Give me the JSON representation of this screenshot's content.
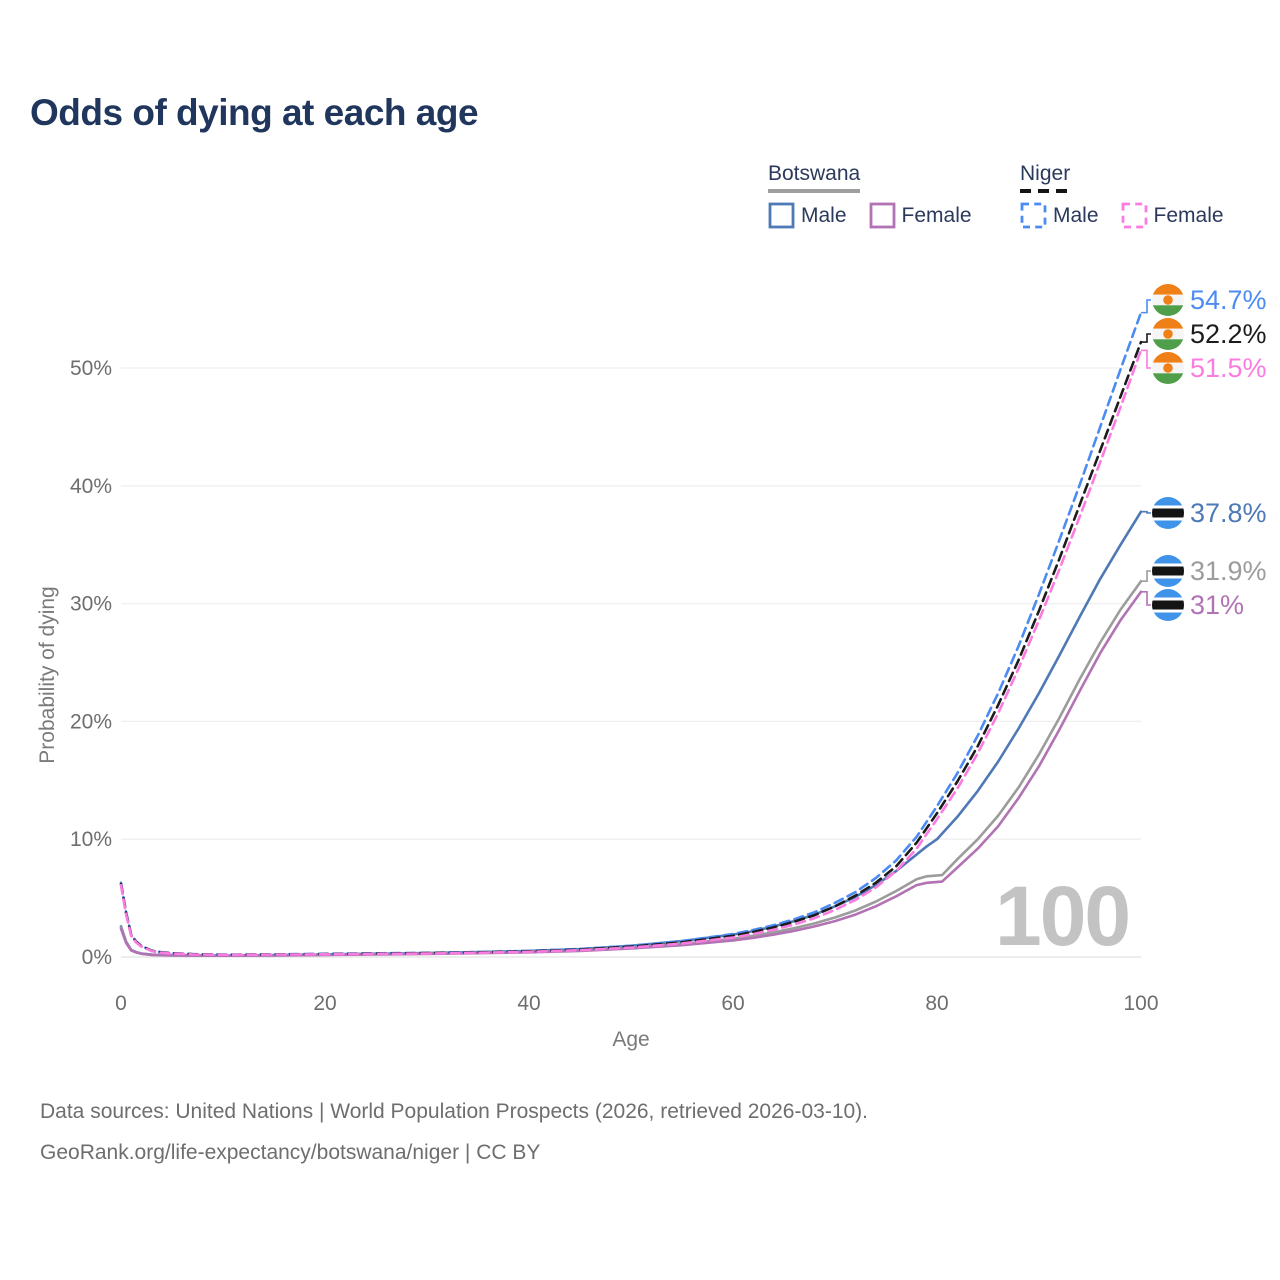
{
  "title": "Odds of dying at each age",
  "watermark_age": "100",
  "legend": {
    "groups": [
      {
        "country": "Botswana",
        "line_style": "solid",
        "underline_color": "#9e9e9e",
        "items": [
          {
            "label": "Male",
            "color": "#4e79b6"
          },
          {
            "label": "Female",
            "color": "#b273b5"
          }
        ]
      },
      {
        "country": "Niger",
        "line_style": "dashed",
        "underline_color": "#141414",
        "items": [
          {
            "label": "Male",
            "color": "#4c8cf2"
          },
          {
            "label": "Female",
            "color": "#fb7be0"
          }
        ]
      }
    ]
  },
  "footer": {
    "line1": "Data sources: United Nations | World Population Prospects (2026, retrieved 2026-03-10).",
    "line2": "GeoRank.org/life-expectancy/botswana/niger | CC BY"
  },
  "flag_colors": {
    "niger": {
      "top": "#ef8018",
      "middle": "#f5f5f5",
      "bottom": "#4f9e4a",
      "roundel": "#ef8018"
    },
    "botswana": {
      "field": "#3f93e8",
      "band_edge": "#ffffff",
      "band": "#141414"
    }
  },
  "chart_data": {
    "type": "line",
    "title": "Odds of dying at each age",
    "xlabel": "Age",
    "ylabel": "Probability of dying",
    "xlim": [
      0,
      100
    ],
    "ylim": [
      0,
      55
    ],
    "x_ticks": [
      0,
      20,
      40,
      60,
      80,
      100
    ],
    "y_ticks": [
      {
        "value": 0,
        "label": "0%"
      },
      {
        "value": 10,
        "label": "10%"
      },
      {
        "value": 20,
        "label": "20%"
      },
      {
        "value": 30,
        "label": "30%"
      },
      {
        "value": 40,
        "label": "40%"
      },
      {
        "value": 50,
        "label": "50%"
      }
    ],
    "grid": "horizontal",
    "legend_position": "top-right",
    "series": [
      {
        "name": "Botswana Male",
        "country": "Botswana",
        "sex": "Male",
        "style": "solid",
        "color": "#4e79b6",
        "flag": "botswana",
        "end_label": "37.8%",
        "end_value": 37.8,
        "points": [
          [
            0,
            2.6
          ],
          [
            0.5,
            1.3
          ],
          [
            1,
            0.6
          ],
          [
            1.5,
            0.42
          ],
          [
            2,
            0.3
          ],
          [
            3,
            0.2
          ],
          [
            4,
            0.17
          ],
          [
            5,
            0.15
          ],
          [
            7,
            0.14
          ],
          [
            10,
            0.13
          ],
          [
            15,
            0.16
          ],
          [
            20,
            0.22
          ],
          [
            25,
            0.28
          ],
          [
            30,
            0.34
          ],
          [
            35,
            0.42
          ],
          [
            40,
            0.52
          ],
          [
            45,
            0.68
          ],
          [
            50,
            0.95
          ],
          [
            55,
            1.35
          ],
          [
            60,
            1.9
          ],
          [
            62,
            2.2
          ],
          [
            64,
            2.6
          ],
          [
            66,
            3.05
          ],
          [
            68,
            3.6
          ],
          [
            70,
            4.3
          ],
          [
            72,
            5.1
          ],
          [
            74,
            6.1
          ],
          [
            76,
            7.3
          ],
          [
            78,
            8.7
          ],
          [
            79,
            9.4
          ],
          [
            80,
            10.0
          ],
          [
            82,
            11.9
          ],
          [
            84,
            14.1
          ],
          [
            86,
            16.6
          ],
          [
            88,
            19.4
          ],
          [
            90,
            22.4
          ],
          [
            92,
            25.6
          ],
          [
            94,
            28.9
          ],
          [
            96,
            32.1
          ],
          [
            98,
            35.0
          ],
          [
            100,
            37.8
          ]
        ]
      },
      {
        "name": "Botswana Both sexes",
        "country": "Botswana",
        "sex": "Both sexes",
        "style": "solid",
        "color": "#9c9c9c",
        "flag": "botswana",
        "end_label": "31.9%",
        "end_value": 31.9,
        "points": [
          [
            0,
            2.5
          ],
          [
            0.5,
            1.25
          ],
          [
            1,
            0.58
          ],
          [
            1.5,
            0.4
          ],
          [
            2,
            0.28
          ],
          [
            3,
            0.19
          ],
          [
            4,
            0.16
          ],
          [
            5,
            0.14
          ],
          [
            7,
            0.13
          ],
          [
            10,
            0.12
          ],
          [
            15,
            0.14
          ],
          [
            20,
            0.19
          ],
          [
            25,
            0.24
          ],
          [
            30,
            0.29
          ],
          [
            35,
            0.36
          ],
          [
            40,
            0.45
          ],
          [
            45,
            0.58
          ],
          [
            50,
            0.8
          ],
          [
            55,
            1.1
          ],
          [
            60,
            1.55
          ],
          [
            62,
            1.8
          ],
          [
            64,
            2.1
          ],
          [
            66,
            2.45
          ],
          [
            68,
            2.85
          ],
          [
            70,
            3.35
          ],
          [
            72,
            3.95
          ],
          [
            74,
            4.7
          ],
          [
            76,
            5.6
          ],
          [
            78,
            6.6
          ],
          [
            79,
            6.85
          ],
          [
            80.5,
            6.95
          ],
          [
            82,
            8.3
          ],
          [
            84,
            10.0
          ],
          [
            86,
            12.0
          ],
          [
            88,
            14.4
          ],
          [
            90,
            17.2
          ],
          [
            92,
            20.3
          ],
          [
            94,
            23.6
          ],
          [
            96,
            26.7
          ],
          [
            98,
            29.5
          ],
          [
            100,
            31.9
          ]
        ]
      },
      {
        "name": "Botswana Female",
        "country": "Botswana",
        "sex": "Female",
        "style": "solid",
        "color": "#b273b5",
        "flag": "botswana",
        "end_label": "31%",
        "end_value": 31.0,
        "points": [
          [
            0,
            2.4
          ],
          [
            0.5,
            1.2
          ],
          [
            1,
            0.55
          ],
          [
            1.5,
            0.38
          ],
          [
            2,
            0.27
          ],
          [
            3,
            0.18
          ],
          [
            4,
            0.15
          ],
          [
            5,
            0.13
          ],
          [
            7,
            0.12
          ],
          [
            10,
            0.11
          ],
          [
            15,
            0.13
          ],
          [
            20,
            0.17
          ],
          [
            25,
            0.21
          ],
          [
            30,
            0.26
          ],
          [
            35,
            0.32
          ],
          [
            40,
            0.4
          ],
          [
            45,
            0.52
          ],
          [
            50,
            0.72
          ],
          [
            55,
            1.0
          ],
          [
            60,
            1.4
          ],
          [
            62,
            1.63
          ],
          [
            64,
            1.9
          ],
          [
            66,
            2.22
          ],
          [
            68,
            2.6
          ],
          [
            70,
            3.05
          ],
          [
            72,
            3.6
          ],
          [
            74,
            4.3
          ],
          [
            76,
            5.15
          ],
          [
            78,
            6.1
          ],
          [
            79,
            6.3
          ],
          [
            80.5,
            6.4
          ],
          [
            82,
            7.6
          ],
          [
            84,
            9.2
          ],
          [
            86,
            11.1
          ],
          [
            88,
            13.5
          ],
          [
            90,
            16.2
          ],
          [
            92,
            19.3
          ],
          [
            94,
            22.6
          ],
          [
            96,
            25.8
          ],
          [
            98,
            28.6
          ],
          [
            100,
            31.0
          ]
        ]
      },
      {
        "name": "Niger Male",
        "country": "Niger",
        "sex": "Male",
        "style": "dashed",
        "color": "#4c8cf2",
        "flag": "niger",
        "end_label": "54.7%",
        "end_value": 54.7,
        "points": [
          [
            0,
            6.3
          ],
          [
            0.5,
            3.8
          ],
          [
            1,
            1.9
          ],
          [
            1.5,
            1.3
          ],
          [
            2,
            0.95
          ],
          [
            3,
            0.55
          ],
          [
            4,
            0.4
          ],
          [
            5,
            0.32
          ],
          [
            7,
            0.25
          ],
          [
            10,
            0.2
          ],
          [
            15,
            0.22
          ],
          [
            20,
            0.27
          ],
          [
            25,
            0.31
          ],
          [
            30,
            0.35
          ],
          [
            35,
            0.42
          ],
          [
            40,
            0.52
          ],
          [
            45,
            0.68
          ],
          [
            50,
            0.95
          ],
          [
            55,
            1.35
          ],
          [
            60,
            1.95
          ],
          [
            62,
            2.3
          ],
          [
            64,
            2.7
          ],
          [
            66,
            3.2
          ],
          [
            68,
            3.8
          ],
          [
            70,
            4.6
          ],
          [
            72,
            5.5
          ],
          [
            74,
            6.7
          ],
          [
            76,
            8.2
          ],
          [
            78,
            10.2
          ],
          [
            80,
            12.8
          ],
          [
            82,
            15.6
          ],
          [
            84,
            18.8
          ],
          [
            86,
            22.4
          ],
          [
            88,
            26.4
          ],
          [
            90,
            30.8
          ],
          [
            92,
            35.4
          ],
          [
            94,
            40.1
          ],
          [
            96,
            45.0
          ],
          [
            98,
            49.9
          ],
          [
            100,
            54.7
          ]
        ]
      },
      {
        "name": "Niger Both sexes",
        "country": "Niger",
        "sex": "Both sexes",
        "style": "dashed",
        "color": "#1c1c1c",
        "flag": "niger",
        "end_label": "52.2%",
        "end_value": 52.2,
        "points": [
          [
            0,
            6.2
          ],
          [
            0.5,
            3.7
          ],
          [
            1,
            1.85
          ],
          [
            1.5,
            1.27
          ],
          [
            2,
            0.92
          ],
          [
            3,
            0.53
          ],
          [
            4,
            0.38
          ],
          [
            5,
            0.31
          ],
          [
            7,
            0.24
          ],
          [
            10,
            0.19
          ],
          [
            15,
            0.21
          ],
          [
            20,
            0.25
          ],
          [
            25,
            0.29
          ],
          [
            30,
            0.33
          ],
          [
            35,
            0.39
          ],
          [
            40,
            0.48
          ],
          [
            45,
            0.63
          ],
          [
            50,
            0.88
          ],
          [
            55,
            1.25
          ],
          [
            60,
            1.8
          ],
          [
            62,
            2.13
          ],
          [
            64,
            2.52
          ],
          [
            66,
            3.0
          ],
          [
            68,
            3.56
          ],
          [
            70,
            4.3
          ],
          [
            72,
            5.2
          ],
          [
            74,
            6.3
          ],
          [
            76,
            7.7
          ],
          [
            78,
            9.7
          ],
          [
            80,
            12.2
          ],
          [
            82,
            14.9
          ],
          [
            84,
            17.9
          ],
          [
            86,
            21.4
          ],
          [
            88,
            25.2
          ],
          [
            90,
            29.4
          ],
          [
            92,
            33.8
          ],
          [
            94,
            38.4
          ],
          [
            96,
            43.0
          ],
          [
            98,
            47.6
          ],
          [
            100,
            52.2
          ]
        ]
      },
      {
        "name": "Niger Female",
        "country": "Niger",
        "sex": "Female",
        "style": "dashed",
        "color": "#fb7be0",
        "flag": "niger",
        "end_label": "51.5%",
        "end_value": 51.5,
        "points": [
          [
            0,
            6.1
          ],
          [
            0.5,
            3.6
          ],
          [
            1,
            1.8
          ],
          [
            1.5,
            1.22
          ],
          [
            2,
            0.88
          ],
          [
            3,
            0.5
          ],
          [
            4,
            0.36
          ],
          [
            5,
            0.29
          ],
          [
            7,
            0.22
          ],
          [
            10,
            0.18
          ],
          [
            15,
            0.2
          ],
          [
            20,
            0.23
          ],
          [
            25,
            0.26
          ],
          [
            30,
            0.3
          ],
          [
            35,
            0.36
          ],
          [
            40,
            0.44
          ],
          [
            45,
            0.58
          ],
          [
            50,
            0.8
          ],
          [
            55,
            1.15
          ],
          [
            60,
            1.65
          ],
          [
            62,
            1.95
          ],
          [
            64,
            2.32
          ],
          [
            66,
            2.76
          ],
          [
            68,
            3.3
          ],
          [
            70,
            4.0
          ],
          [
            72,
            4.85
          ],
          [
            74,
            5.9
          ],
          [
            76,
            7.3
          ],
          [
            78,
            9.2
          ],
          [
            80,
            11.7
          ],
          [
            82,
            14.3
          ],
          [
            84,
            17.3
          ],
          [
            86,
            20.7
          ],
          [
            88,
            24.5
          ],
          [
            90,
            28.6
          ],
          [
            92,
            32.9
          ],
          [
            94,
            37.4
          ],
          [
            96,
            42.0
          ],
          [
            98,
            46.7
          ],
          [
            100,
            51.5
          ]
        ]
      }
    ]
  }
}
